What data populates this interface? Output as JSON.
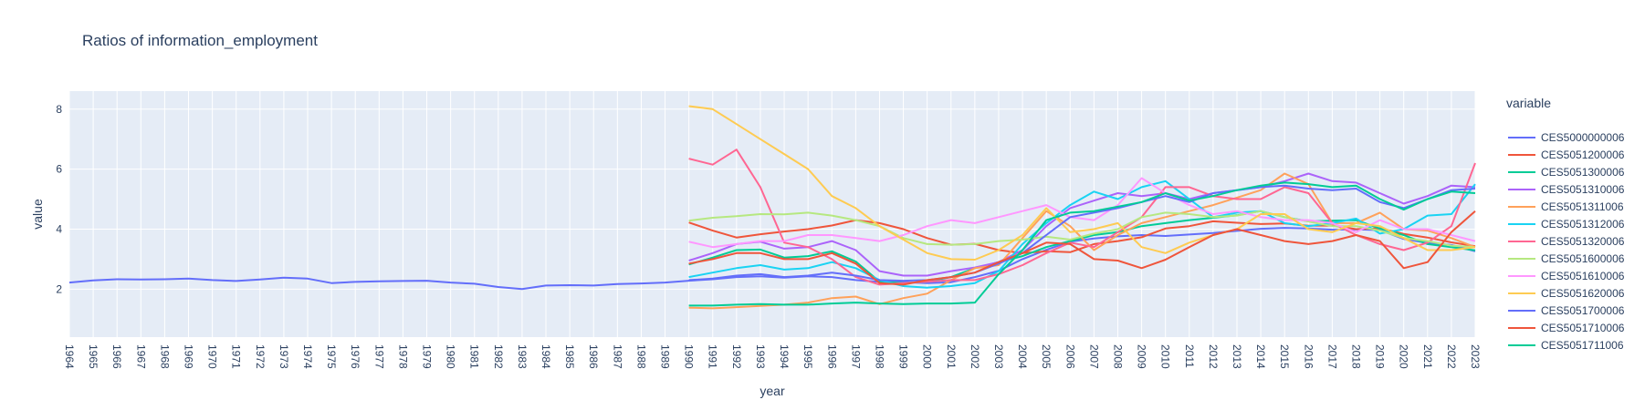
{
  "chart_data": {
    "type": "line",
    "title": "Ratios of information_employment",
    "xlabel": "year",
    "ylabel": "value",
    "xlim": [
      1964,
      2023
    ],
    "ylim": [
      0.4,
      8.6
    ],
    "y_ticks": [
      2,
      4,
      6,
      8
    ],
    "grid": true,
    "legend": {
      "title": "variable",
      "placement": "right"
    },
    "series": [
      {
        "name": "CES5000000006",
        "color": "#636efa",
        "start": 1964,
        "values": [
          2.22,
          2.29,
          2.33,
          2.32,
          2.33,
          2.35,
          2.3,
          2.27,
          2.32,
          2.38,
          2.35,
          2.2,
          2.24,
          2.26,
          2.27,
          2.28,
          2.22,
          2.18,
          2.07,
          2.0,
          2.12,
          2.13,
          2.12,
          2.17,
          2.19,
          2.22,
          2.28,
          2.33,
          2.4,
          2.43,
          2.38,
          2.43,
          2.4,
          2.3,
          2.24,
          2.23,
          2.2,
          2.23,
          2.4,
          2.61,
          3.0,
          3.31,
          3.58,
          3.69,
          3.76,
          3.8,
          3.77,
          3.82,
          3.87,
          3.94,
          4.01,
          4.04,
          4.02,
          3.98,
          3.99,
          3.97,
          3.67,
          3.54,
          3.47,
          3.26
        ]
      },
      {
        "name": "CES5051200006",
        "color": "#EF553B",
        "start": 1990,
        "values": [
          4.22,
          3.95,
          3.72,
          3.83,
          3.92,
          4.0,
          4.12,
          4.3,
          4.2,
          4.0,
          3.7,
          3.48,
          3.51,
          3.3,
          3.2,
          3.26,
          3.23,
          3.5,
          3.6,
          3.73,
          4.02,
          4.1,
          4.26,
          4.21,
          4.17,
          4.19,
          4.11,
          4.12,
          4.0,
          4.03,
          3.84,
          3.72,
          3.56,
          3.43
        ]
      },
      {
        "name": "CES5051300006",
        "color": "#00cc96",
        "start": 1990,
        "values": [
          2.82,
          3.05,
          3.3,
          3.32,
          3.05,
          3.1,
          3.26,
          2.92,
          2.25,
          2.2,
          2.25,
          2.4,
          2.7,
          2.9,
          3.1,
          3.4,
          3.6,
          3.8,
          3.9,
          4.1,
          4.2,
          4.3,
          4.38,
          4.46,
          4.6,
          4.4,
          4.26,
          4.28,
          4.3,
          4.02,
          3.8,
          3.5,
          3.4,
          3.29
        ]
      },
      {
        "name": "CES5051310006",
        "color": "#ab63fa",
        "start": 1990,
        "values": [
          2.95,
          3.2,
          3.5,
          3.58,
          3.35,
          3.4,
          3.6,
          3.3,
          2.6,
          2.45,
          2.45,
          2.6,
          2.72,
          2.9,
          3.3,
          4.1,
          4.7,
          4.95,
          5.2,
          5.1,
          5.2,
          5.0,
          5.2,
          5.3,
          5.4,
          5.6,
          5.85,
          5.6,
          5.55,
          5.2,
          4.85,
          5.1,
          5.45,
          5.4
        ]
      },
      {
        "name": "CES5051311006",
        "color": "#FFA15A",
        "start": 1990,
        "values": [
          1.38,
          1.36,
          1.4,
          1.44,
          1.48,
          1.55,
          1.7,
          1.75,
          1.5,
          1.7,
          1.85,
          2.3,
          2.7,
          2.8,
          3.7,
          4.6,
          4.1,
          3.3,
          3.8,
          4.2,
          4.4,
          4.6,
          4.8,
          5.05,
          5.3,
          5.85,
          5.5,
          4.2,
          4.2,
          4.55,
          4.0,
          3.95,
          3.7,
          3.4
        ]
      },
      {
        "name": "CES5051312006",
        "color": "#19d3f3",
        "start": 1990,
        "values": [
          2.4,
          2.55,
          2.7,
          2.8,
          2.65,
          2.7,
          2.9,
          2.7,
          2.3,
          2.1,
          2.05,
          2.1,
          2.2,
          2.6,
          3.5,
          4.2,
          4.8,
          5.25,
          5.0,
          5.4,
          5.6,
          5.0,
          4.4,
          4.55,
          4.6,
          4.2,
          4.1,
          4.2,
          4.35,
          3.85,
          4.0,
          4.45,
          4.5,
          5.5
        ]
      },
      {
        "name": "CES5051320006",
        "color": "#FF6692",
        "start": 1990,
        "values": [
          6.35,
          6.15,
          6.65,
          5.4,
          3.55,
          3.4,
          3.0,
          2.4,
          2.15,
          2.2,
          2.25,
          2.3,
          2.3,
          2.5,
          2.8,
          3.2,
          3.55,
          3.4,
          3.9,
          4.4,
          5.4,
          5.4,
          5.1,
          5.0,
          5.0,
          5.4,
          5.2,
          4.2,
          3.8,
          3.5,
          3.3,
          3.55,
          4.1,
          6.2
        ]
      },
      {
        "name": "CES5051600006",
        "color": "#B6E880",
        "start": 1990,
        "values": [
          4.28,
          4.38,
          4.43,
          4.5,
          4.49,
          4.55,
          4.45,
          4.3,
          4.1,
          3.7,
          3.5,
          3.48,
          3.5,
          3.6,
          3.65,
          3.75,
          3.65,
          3.85,
          4.0,
          4.4,
          4.55,
          4.5,
          4.4,
          4.45,
          4.6,
          4.4,
          4.25,
          4.1,
          4.1,
          3.95,
          3.7,
          3.6,
          3.45,
          3.4
        ]
      },
      {
        "name": "CES5051610006",
        "color": "#FF97FF",
        "start": 1990,
        "values": [
          3.58,
          3.4,
          3.5,
          3.6,
          3.6,
          3.8,
          3.8,
          3.7,
          3.6,
          3.8,
          4.1,
          4.3,
          4.2,
          4.4,
          4.6,
          4.8,
          4.4,
          4.3,
          4.8,
          5.7,
          5.2,
          4.8,
          4.5,
          4.6,
          4.4,
          4.3,
          4.3,
          4.2,
          3.9,
          4.3,
          4.0,
          4.0,
          3.8,
          3.6
        ]
      },
      {
        "name": "CES5051620006",
        "color": "#FECB52",
        "start": 1990,
        "values": [
          8.1,
          8.0,
          7.5,
          7.0,
          6.5,
          6.0,
          5.1,
          4.7,
          4.1,
          3.65,
          3.2,
          3.0,
          2.98,
          3.3,
          3.8,
          4.7,
          3.9,
          4.0,
          4.2,
          3.4,
          3.2,
          3.55,
          3.8,
          4.0,
          4.5,
          4.5,
          4.0,
          3.9,
          4.2,
          4.1,
          3.7,
          3.3,
          3.3,
          3.4
        ]
      },
      {
        "name": "CES5051700006",
        "color": "#636efa",
        "start": 1990,
        "values": [
          2.3,
          2.35,
          2.45,
          2.5,
          2.4,
          2.45,
          2.55,
          2.45,
          2.3,
          2.28,
          2.3,
          2.4,
          2.55,
          2.85,
          3.2,
          3.8,
          4.4,
          4.55,
          4.7,
          4.9,
          5.1,
          4.9,
          5.2,
          5.3,
          5.4,
          5.45,
          5.35,
          5.3,
          5.35,
          4.9,
          4.7,
          5.0,
          5.3,
          5.35
        ]
      },
      {
        "name": "CES5051710006",
        "color": "#EF553B",
        "start": 1990,
        "values": [
          2.85,
          3.0,
          3.2,
          3.2,
          3.0,
          3.0,
          3.2,
          2.85,
          2.2,
          2.15,
          2.3,
          2.4,
          2.55,
          2.9,
          3.2,
          3.55,
          3.5,
          3.0,
          2.95,
          2.7,
          2.98,
          3.4,
          3.8,
          4.0,
          3.8,
          3.6,
          3.5,
          3.6,
          3.8,
          3.6,
          2.7,
          2.9,
          3.9,
          4.6
        ]
      },
      {
        "name": "CES5051711006",
        "color": "#00cc96",
        "start": 1990,
        "values": [
          1.45,
          1.45,
          1.48,
          1.5,
          1.48,
          1.48,
          1.52,
          1.55,
          1.52,
          1.5,
          1.52,
          1.52,
          1.55,
          2.5,
          3.3,
          4.3,
          4.55,
          4.6,
          4.75,
          4.9,
          5.2,
          4.95,
          5.1,
          5.3,
          5.45,
          5.55,
          5.5,
          5.4,
          5.45,
          5.0,
          4.65,
          5.0,
          5.25,
          5.2
        ]
      }
    ]
  }
}
